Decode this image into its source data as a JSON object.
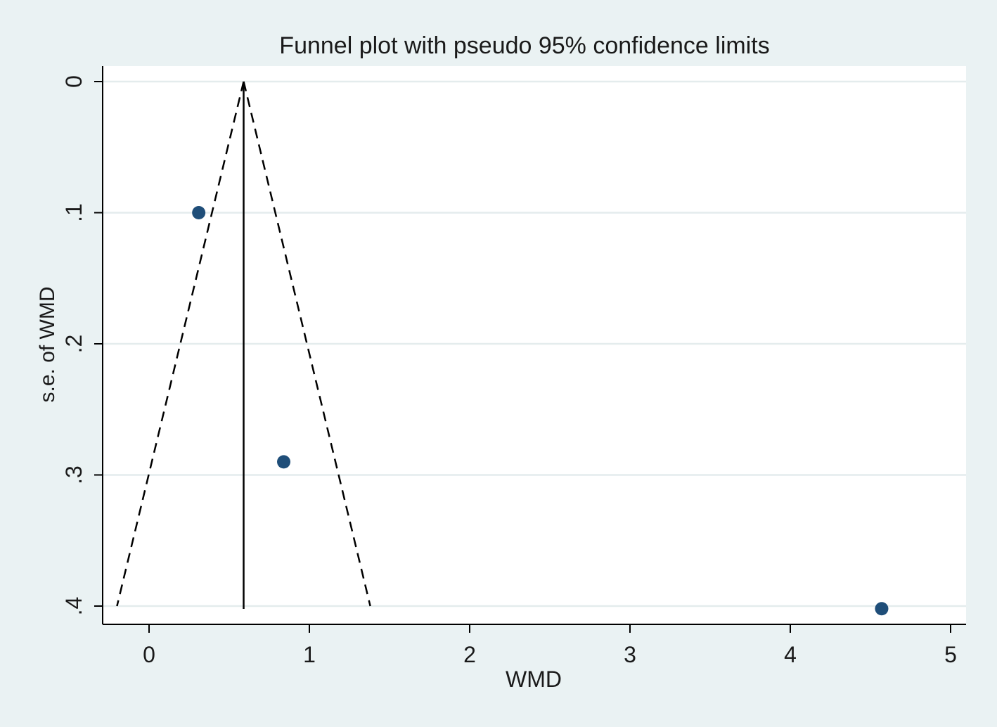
{
  "chart_data": {
    "type": "scatter",
    "title": "Funnel plot with pseudo 95% confidence limits",
    "xlabel": "WMD",
    "ylabel": "s.e. of WMD",
    "xlim": [
      -0.3,
      5.1
    ],
    "ylim": [
      0.0,
      0.4
    ],
    "y_reversed": true,
    "xticks": [
      0,
      1,
      2,
      3,
      4,
      5
    ],
    "xtick_labels": [
      "0",
      "1",
      "2",
      "3",
      "4",
      "5"
    ],
    "yticks": [
      0,
      0.1,
      0.2,
      0.3,
      0.4
    ],
    "ytick_labels": [
      "0",
      ".1",
      ".2",
      ".3",
      ".4"
    ],
    "grid": "horizontal",
    "points": [
      {
        "x": 0.31,
        "y": 0.1
      },
      {
        "x": 0.84,
        "y": 0.29
      },
      {
        "x": 4.57,
        "y": 0.402
      }
    ],
    "pooled_estimate": 0.59,
    "funnel_limits": {
      "apex": {
        "x": 0.59,
        "y": 0.0
      },
      "left_base": {
        "x": -0.2,
        "y": 0.4
      },
      "right_base": {
        "x": 1.38,
        "y": 0.4
      }
    },
    "colors": {
      "background": "#eaf2f3",
      "plot_area": "#ffffff",
      "marker": "#1f4e79",
      "gridline": "#e4eced",
      "lines": "#000000"
    }
  }
}
